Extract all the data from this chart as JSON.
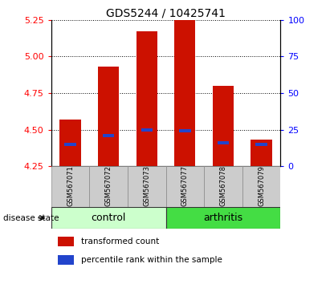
{
  "title": "GDS5244 / 10425741",
  "samples": [
    "GSM567071",
    "GSM567072",
    "GSM567073",
    "GSM567077",
    "GSM567078",
    "GSM567079"
  ],
  "bar_bottom": 4.25,
  "bar_tops": [
    4.57,
    4.93,
    5.17,
    5.25,
    4.8,
    4.43
  ],
  "blue_markers": [
    4.4,
    4.46,
    4.5,
    4.49,
    4.41,
    4.4
  ],
  "ylim_left": [
    4.25,
    5.25
  ],
  "ylim_right": [
    0,
    100
  ],
  "yticks_left": [
    4.25,
    4.5,
    4.75,
    5.0,
    5.25
  ],
  "yticks_right": [
    0,
    25,
    50,
    75,
    100
  ],
  "bar_color": "#cc1100",
  "blue_color": "#2244cc",
  "groups": [
    {
      "label": "control",
      "indices": [
        0,
        1,
        2
      ],
      "color": "#ccffcc"
    },
    {
      "label": "arthritis",
      "indices": [
        3,
        4,
        5
      ],
      "color": "#44dd44"
    }
  ],
  "xlabel_disease": "disease state",
  "legend_red": "transformed count",
  "legend_blue": "percentile rank within the sample",
  "bar_width": 0.55,
  "tick_bg": "#cccccc",
  "tick_border": "#888888"
}
